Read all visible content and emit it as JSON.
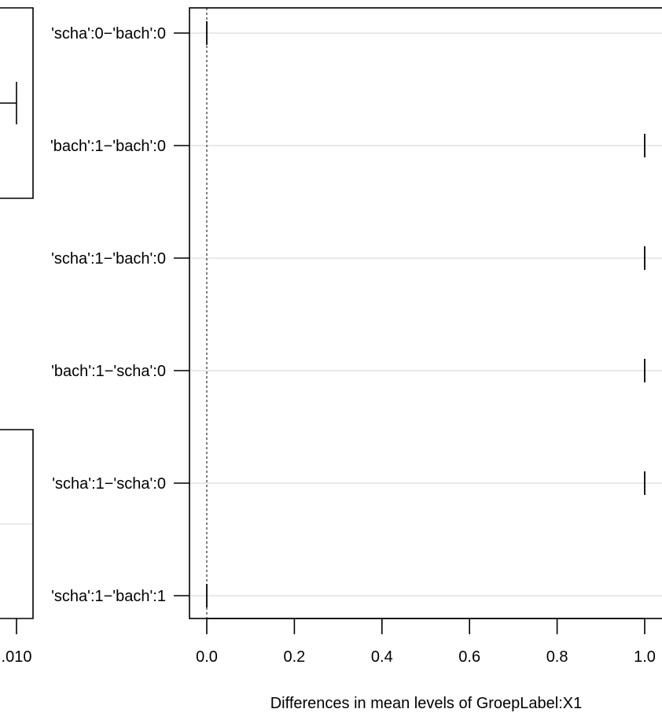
{
  "chart_data": {
    "type": "scatter",
    "xlabel": "Differences in mean levels of GroepLabel:X1",
    "xlim": [
      0.0,
      1.0
    ],
    "xticks": [
      "0.0",
      "0.2",
      "0.4",
      "0.6",
      "0.8",
      "1.0"
    ],
    "reference_line": 0.0,
    "grid": true,
    "categories": [
      "'scha':0−'bach':0",
      "'bach':1−'bach':0",
      "'scha':1−'bach':0",
      "'bach':1−'scha':0",
      "'scha':1−'scha':0",
      "'scha':1−'bach':1"
    ],
    "values": [
      0.0,
      1.0,
      1.0,
      1.0,
      1.0,
      0.0
    ],
    "left_panel_partial": {
      "tick_label": ".010",
      "row_labels_visible": [
        "'scha':0−'bach':0",
        "'bach':1−'bach':0",
        "'scha':1−'scha':0",
        "'scha':1−'bach':1"
      ]
    }
  }
}
